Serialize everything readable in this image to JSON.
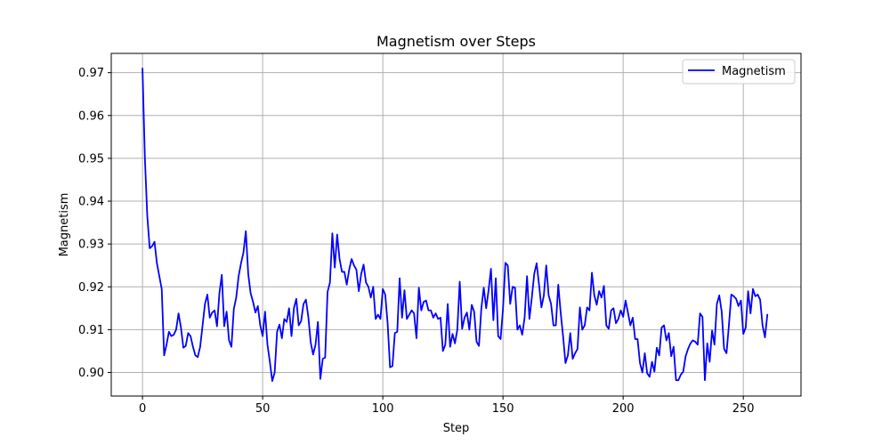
{
  "chart_data": {
    "type": "line",
    "title": "Magnetism over Steps",
    "xlabel": "Step",
    "ylabel": "Magnetism",
    "xlim": [
      -13,
      274
    ],
    "ylim": [
      0.8945,
      0.9745
    ],
    "xticks": [
      0,
      50,
      100,
      150,
      200,
      250
    ],
    "yticks": [
      0.9,
      0.91,
      0.92,
      0.93,
      0.94,
      0.95,
      0.96,
      0.97
    ],
    "grid": true,
    "legend_position": "top-right",
    "series": [
      {
        "name": "Magnetism",
        "color": "#0000ff",
        "x_start": 0,
        "x_step": 1,
        "values": [
          0.971,
          0.95,
          0.9365,
          0.929,
          0.9295,
          0.9305,
          0.9255,
          0.9225,
          0.9195,
          0.904,
          0.9065,
          0.9095,
          0.9085,
          0.9088,
          0.91,
          0.9138,
          0.9105,
          0.9058,
          0.9062,
          0.9092,
          0.9085,
          0.906,
          0.904,
          0.9036,
          0.906,
          0.911,
          0.916,
          0.9182,
          0.9128,
          0.914,
          0.9145,
          0.9108,
          0.9185,
          0.9228,
          0.9108,
          0.9142,
          0.9075,
          0.906,
          0.9148,
          0.9175,
          0.9225,
          0.9255,
          0.928,
          0.933,
          0.923,
          0.9185,
          0.9165,
          0.914,
          0.9155,
          0.911,
          0.9085,
          0.9142,
          0.9065,
          0.9025,
          0.898,
          0.9,
          0.9095,
          0.9112,
          0.908,
          0.9125,
          0.9118,
          0.915,
          0.9085,
          0.915,
          0.9172,
          0.911,
          0.912,
          0.916,
          0.917,
          0.913,
          0.907,
          0.9042,
          0.9065,
          0.9118,
          0.8985,
          0.9032,
          0.9035,
          0.9188,
          0.921,
          0.9325,
          0.9245,
          0.9322,
          0.9265,
          0.9235,
          0.9235,
          0.9205,
          0.924,
          0.9265,
          0.925,
          0.924,
          0.919,
          0.923,
          0.9252,
          0.921,
          0.92,
          0.9175,
          0.92,
          0.9125,
          0.9135,
          0.9125,
          0.9195,
          0.9182,
          0.9115,
          0.9012,
          0.9015,
          0.9092,
          0.9095,
          0.922,
          0.9128,
          0.9192,
          0.9125,
          0.9135,
          0.9145,
          0.9138,
          0.908,
          0.9198,
          0.9145,
          0.9165,
          0.9168,
          0.9145,
          0.9145,
          0.9128,
          0.9138,
          0.9125,
          0.9128,
          0.905,
          0.9065,
          0.916,
          0.906,
          0.909,
          0.9068,
          0.91,
          0.9212,
          0.9102,
          0.9128,
          0.914,
          0.91,
          0.9158,
          0.9142,
          0.9072,
          0.9062,
          0.915,
          0.9198,
          0.915,
          0.9192,
          0.9242,
          0.9122,
          0.922,
          0.9085,
          0.9078,
          0.9148,
          0.9256,
          0.925,
          0.916,
          0.92,
          0.9198,
          0.91,
          0.911,
          0.9088,
          0.9128,
          0.9225,
          0.9125,
          0.9175,
          0.923,
          0.9255,
          0.9205,
          0.9152,
          0.918,
          0.925,
          0.918,
          0.916,
          0.911,
          0.911,
          0.9205,
          0.914,
          0.9085,
          0.9022,
          0.904,
          0.9092,
          0.9032,
          0.9045,
          0.9055,
          0.9152,
          0.91,
          0.911,
          0.9152,
          0.9145,
          0.9233,
          0.918,
          0.9158,
          0.919,
          0.9175,
          0.9202,
          0.911,
          0.9102,
          0.9145,
          0.915,
          0.9115,
          0.9125,
          0.9145,
          0.913,
          0.9168,
          0.914,
          0.911,
          0.9128,
          0.9078,
          0.9078,
          0.9022,
          0.9,
          0.9045,
          0.8998,
          0.899,
          0.9025,
          0.9002,
          0.9058,
          0.904,
          0.9105,
          0.911,
          0.9075,
          0.9092,
          0.9038,
          0.906,
          0.8982,
          0.8982,
          0.8995,
          0.9002,
          0.9038,
          0.9055,
          0.9068,
          0.9075,
          0.9072,
          0.9065,
          0.9138,
          0.913,
          0.8982,
          0.9068,
          0.9025,
          0.9098,
          0.9065,
          0.916,
          0.918,
          0.9142,
          0.9055,
          0.9045,
          0.911,
          0.9182,
          0.9178,
          0.9172,
          0.9155,
          0.9168,
          0.909,
          0.9105,
          0.919,
          0.9138,
          0.9195,
          0.9178,
          0.9182,
          0.917,
          0.911,
          0.9082,
          0.9135
        ]
      }
    ]
  }
}
